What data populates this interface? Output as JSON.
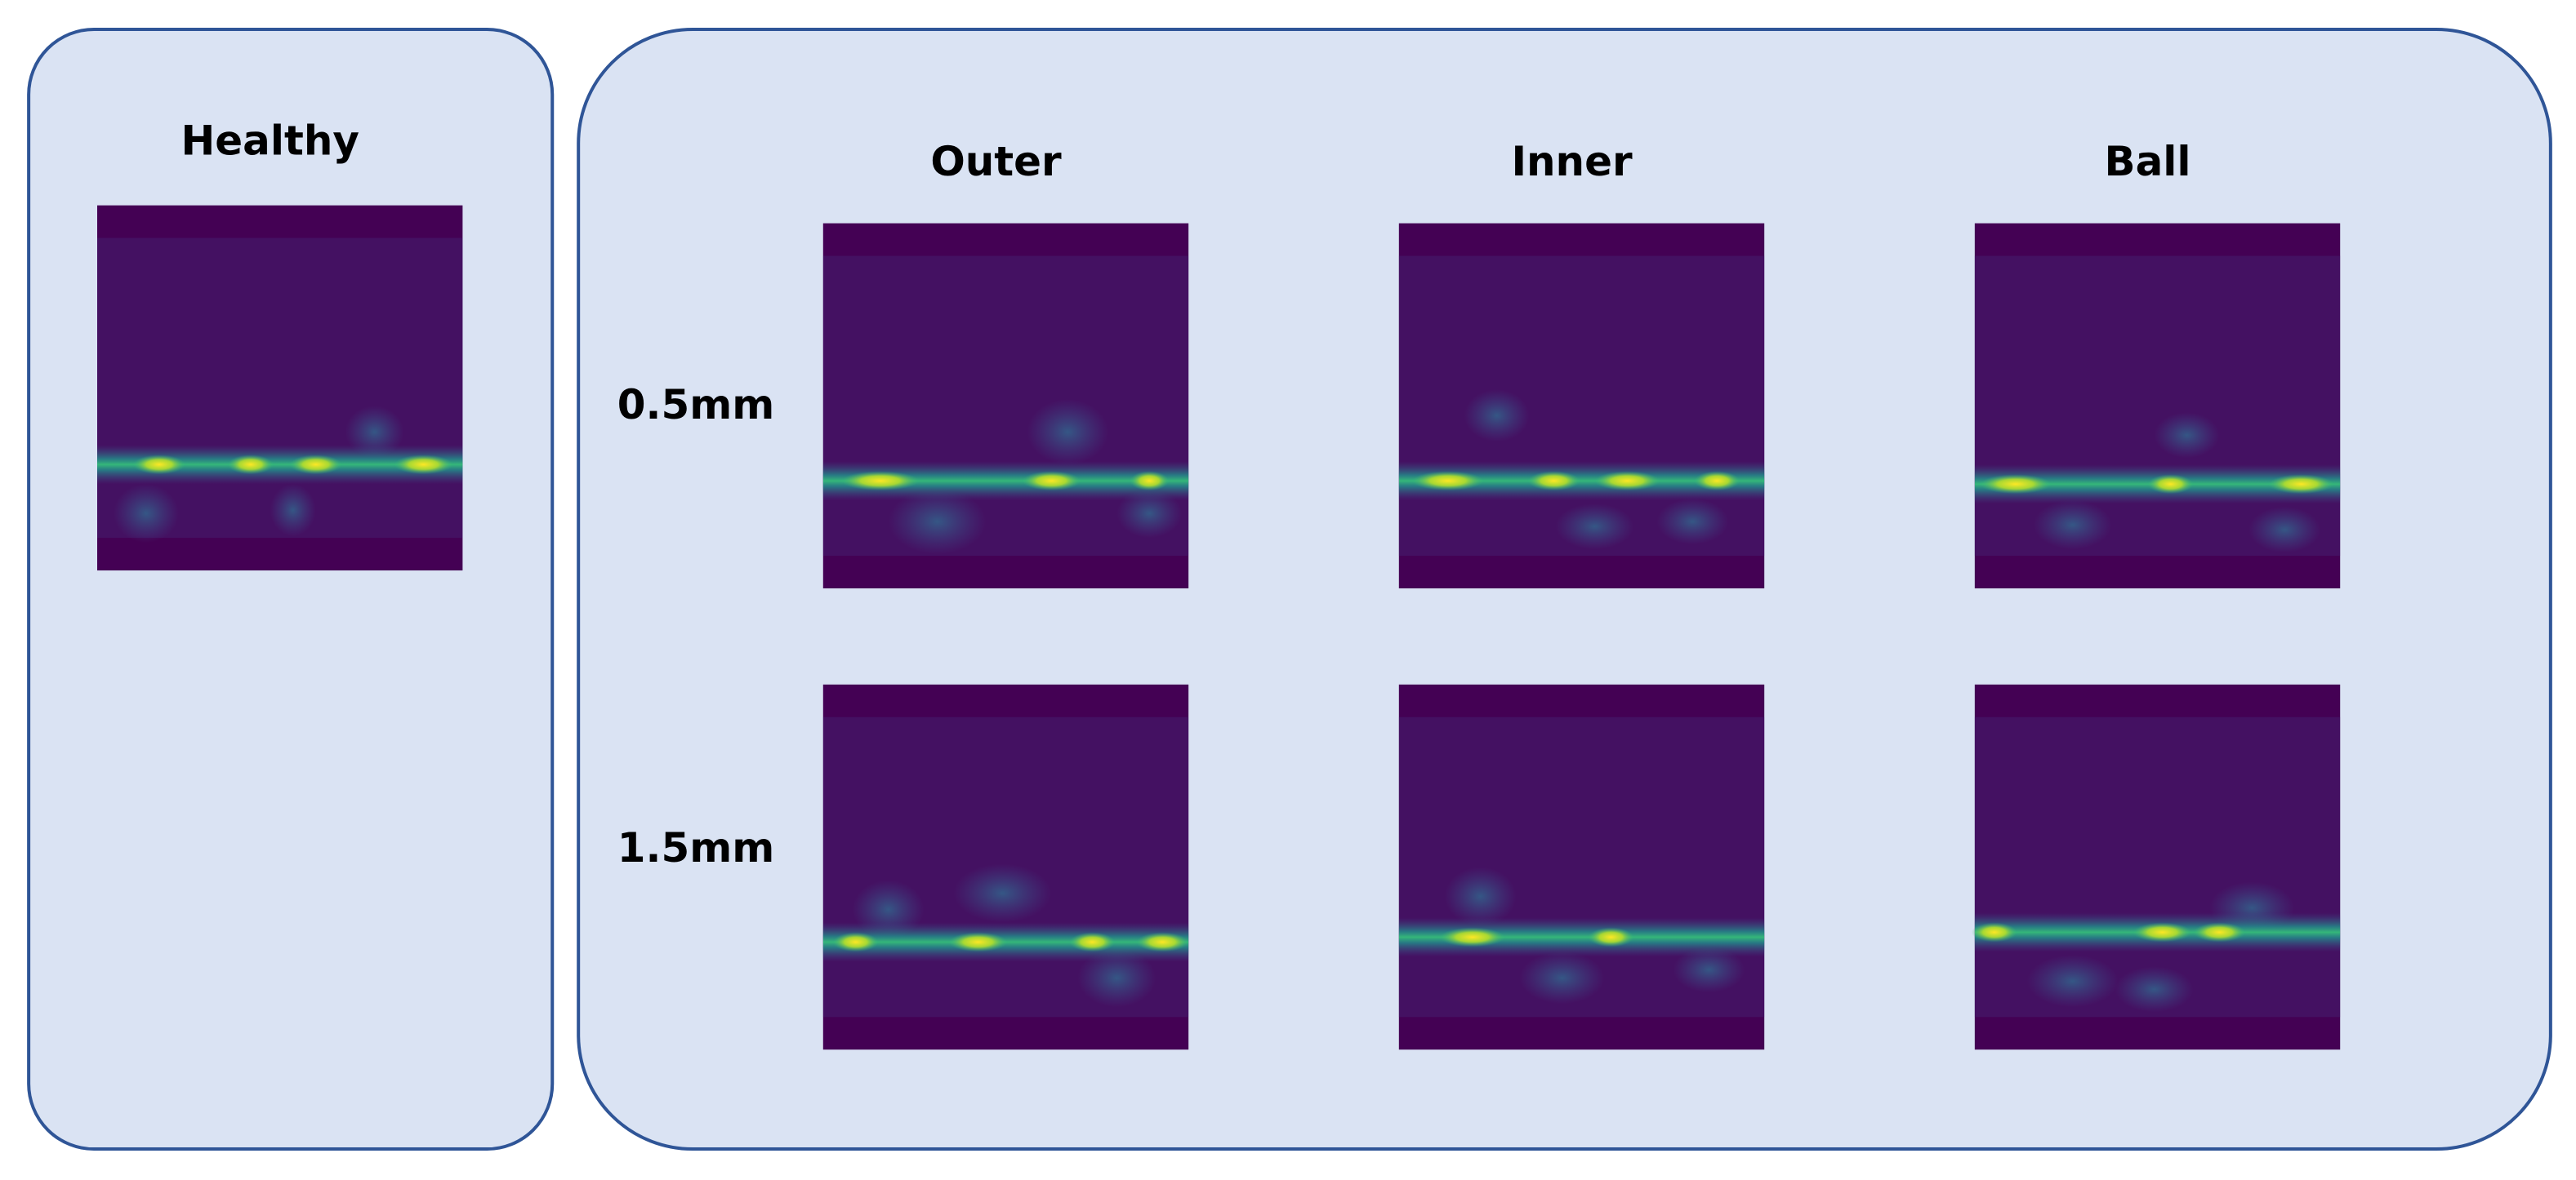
{
  "healthy": {
    "title": "Healthy"
  },
  "faults": {
    "columns": [
      "Outer",
      "Inner",
      "Ball"
    ],
    "rows": [
      "0.5mm",
      "1.5mm"
    ]
  }
}
